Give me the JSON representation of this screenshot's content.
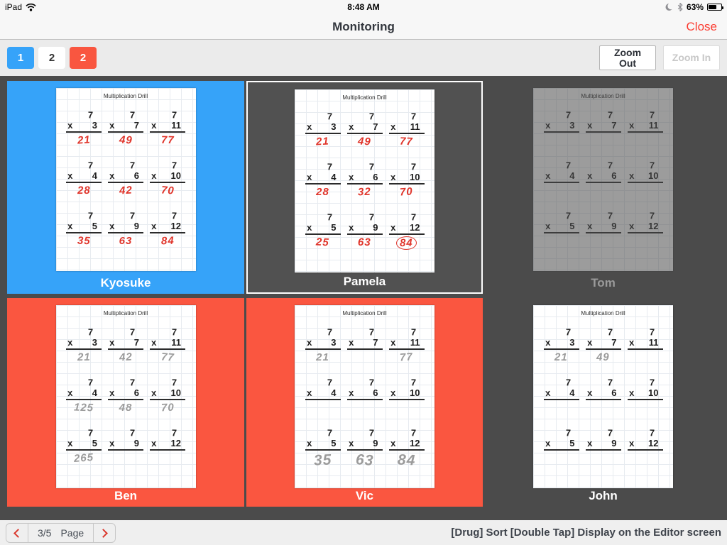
{
  "status_bar": {
    "left_label": "iPad",
    "time": "8:48 AM",
    "battery_percent": "63%",
    "icons": [
      "wifi-icon",
      "moon-icon",
      "bluetooth-icon",
      "battery-icon"
    ]
  },
  "nav_bar": {
    "title": "Monitoring",
    "close_label": "Close"
  },
  "toolbar": {
    "page_buttons": [
      {
        "label": "1",
        "style": "blue"
      },
      {
        "label": "2",
        "style": "white"
      },
      {
        "label": "2",
        "style": "red"
      }
    ],
    "zoom_out_label": "Zoom Out",
    "zoom_in_label": "Zoom In",
    "zoom_in_enabled": false
  },
  "worksheet": {
    "title": "Multiplication Drill",
    "top_operand": "7",
    "mult_sign": "x",
    "multipliers": [
      "3",
      "7",
      "11",
      "4",
      "6",
      "10",
      "5",
      "9",
      "12"
    ]
  },
  "students": [
    {
      "name": "Kyosuke",
      "tile": "blue",
      "selected": false,
      "dimmed": false,
      "ink": "red",
      "answers": [
        "21",
        "49",
        "77",
        "28",
        "42",
        "70",
        "35",
        "63",
        "84"
      ]
    },
    {
      "name": "Pamela",
      "tile": "none",
      "selected": true,
      "dimmed": false,
      "ink": "red",
      "answers": [
        "21",
        "49",
        "77",
        "28",
        "32",
        "70",
        "25",
        "63",
        "84"
      ],
      "circled_answer_index": 8
    },
    {
      "name": "Tom",
      "tile": "none",
      "selected": false,
      "dimmed": true,
      "ink": "pencil",
      "answers": [
        "",
        "",
        "",
        "",
        "",
        "",
        "",
        "",
        ""
      ]
    },
    {
      "name": "Ben",
      "tile": "red",
      "selected": false,
      "dimmed": false,
      "ink": "pencil",
      "answers": [
        "21",
        "42",
        "77",
        "125",
        "48",
        "70",
        "265",
        "",
        ""
      ]
    },
    {
      "name": "Vic",
      "tile": "red",
      "selected": false,
      "dimmed": false,
      "ink": "pencil",
      "answers": [
        "21",
        "",
        "77",
        "",
        "",
        "",
        "35",
        "63",
        "84"
      ],
      "large_answers": [
        6,
        7,
        8
      ]
    },
    {
      "name": "John",
      "tile": "none",
      "selected": false,
      "dimmed": false,
      "ink": "pencil",
      "answers": [
        "21",
        "49",
        "",
        "",
        "",
        "",
        "",
        "",
        ""
      ]
    }
  ],
  "bottom_bar": {
    "page_fraction": "3/5",
    "page_word": "Page",
    "hint": "[Drug] Sort [Double Tap] Display on the Editor screen",
    "icons": [
      "chevron-left-icon",
      "chevron-right-icon"
    ]
  },
  "colors": {
    "tile_blue": "#36a3f9",
    "tile_red": "#fa5640",
    "background_dark": "#4b4b4b",
    "close_red": "#fb3b30",
    "chevron_red": "#da382d",
    "red_ink": "#e0352b",
    "pencil_ink": "#9b9b9b"
  }
}
